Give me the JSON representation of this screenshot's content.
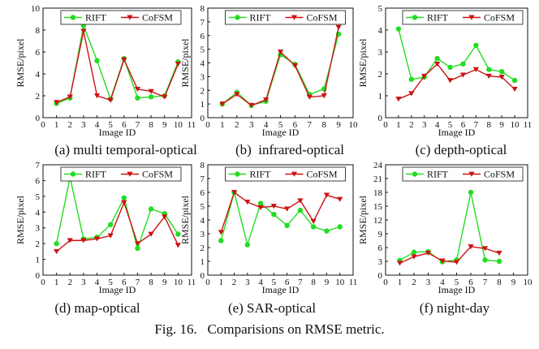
{
  "figure_caption": "Fig. 16.   Comparisions on RMSE metric.",
  "colors": {
    "RIFT": "#22dd22",
    "CoFSM": "#cc1111"
  },
  "chart_data": [
    {
      "type": "line",
      "subcaption": "(a) multi temporal-optical",
      "xlabel": "Image ID",
      "ylabel": "RMSE/pixel",
      "xlim": [
        0,
        11
      ],
      "ylim": [
        0,
        10
      ],
      "xticks": [
        0,
        1,
        2,
        3,
        4,
        5,
        6,
        7,
        8,
        9,
        10,
        11
      ],
      "yticks": [
        0,
        2,
        4,
        6,
        8,
        10
      ],
      "x": [
        1,
        2,
        3,
        4,
        5,
        6,
        7,
        8,
        9,
        10
      ],
      "series": [
        {
          "name": "RIFT",
          "values": [
            1.3,
            1.8,
            8.4,
            5.2,
            1.7,
            5.4,
            1.8,
            1.9,
            2.0,
            5.1
          ]
        },
        {
          "name": "CoFSM",
          "values": [
            1.4,
            1.9,
            7.9,
            2.0,
            1.6,
            5.3,
            2.6,
            2.4,
            1.9,
            4.9
          ]
        }
      ]
    },
    {
      "type": "line",
      "subcaption": "(b)  infrared-optical",
      "xlabel": "Image ID",
      "ylabel": "RMSE/pixel",
      "xlim": [
        0,
        10
      ],
      "ylim": [
        0,
        8
      ],
      "xticks": [
        0,
        1,
        2,
        3,
        4,
        5,
        6,
        7,
        8,
        9,
        10
      ],
      "yticks": [
        0,
        1,
        2,
        3,
        4,
        5,
        6,
        7,
        8
      ],
      "x": [
        1,
        2,
        3,
        4,
        5,
        6,
        7,
        8,
        9
      ],
      "series": [
        {
          "name": "RIFT",
          "values": [
            1.0,
            1.85,
            0.9,
            1.2,
            4.6,
            3.9,
            1.7,
            2.1,
            6.1
          ]
        },
        {
          "name": "CoFSM",
          "values": [
            1.0,
            1.7,
            0.9,
            1.3,
            4.8,
            3.8,
            1.5,
            1.6,
            6.6
          ]
        }
      ]
    },
    {
      "type": "line",
      "subcaption": "(c) depth-optical",
      "xlabel": "Image ID",
      "ylabel": "RMSE/pixel",
      "xlim": [
        0,
        11
      ],
      "ylim": [
        0,
        5
      ],
      "xticks": [
        0,
        1,
        2,
        3,
        4,
        5,
        6,
        7,
        8,
        9,
        10,
        11
      ],
      "yticks": [
        0,
        1,
        2,
        3,
        4,
        5
      ],
      "x": [
        1,
        2,
        3,
        4,
        5,
        6,
        7,
        8,
        9,
        10
      ],
      "series": [
        {
          "name": "RIFT",
          "values": [
            4.05,
            1.75,
            1.85,
            2.7,
            2.3,
            2.45,
            3.3,
            2.2,
            2.1,
            1.7
          ]
        },
        {
          "name": "CoFSM",
          "values": [
            0.85,
            1.1,
            1.9,
            2.45,
            1.7,
            1.95,
            2.2,
            1.9,
            1.85,
            1.3
          ]
        }
      ]
    },
    {
      "type": "line",
      "subcaption": "(d) map-optical",
      "xlabel": "Image ID",
      "ylabel": "RMSE/pixel",
      "xlim": [
        0,
        11
      ],
      "ylim": [
        0,
        7
      ],
      "xticks": [
        0,
        1,
        2,
        3,
        4,
        5,
        6,
        7,
        8,
        9,
        10,
        11
      ],
      "yticks": [
        0,
        1,
        2,
        3,
        4,
        5,
        6,
        7
      ],
      "x": [
        1,
        2,
        3,
        4,
        5,
        6,
        7,
        8,
        9,
        10
      ],
      "series": [
        {
          "name": "RIFT",
          "values": [
            2.0,
            6.2,
            2.3,
            2.4,
            3.2,
            4.9,
            1.7,
            4.2,
            3.9,
            2.6
          ]
        },
        {
          "name": "CoFSM",
          "values": [
            1.5,
            2.2,
            2.2,
            2.3,
            2.5,
            4.6,
            2.0,
            2.6,
            3.7,
            1.9
          ]
        }
      ]
    },
    {
      "type": "line",
      "subcaption": "(e) SAR-optical",
      "xlabel": "Image ID",
      "ylabel": "RMSE/pixel",
      "xlim": [
        0,
        11
      ],
      "ylim": [
        0,
        8
      ],
      "xticks": [
        0,
        1,
        2,
        3,
        4,
        5,
        6,
        7,
        8,
        9,
        10,
        11
      ],
      "yticks": [
        0,
        1,
        2,
        3,
        4,
        5,
        6,
        7,
        8
      ],
      "x": [
        1,
        2,
        3,
        4,
        5,
        6,
        7,
        8,
        9,
        10
      ],
      "series": [
        {
          "name": "RIFT",
          "values": [
            2.5,
            6.0,
            2.2,
            5.2,
            4.4,
            3.6,
            4.7,
            3.5,
            3.2,
            3.5
          ]
        },
        {
          "name": "CoFSM",
          "values": [
            3.1,
            6.0,
            5.3,
            4.9,
            5.0,
            4.8,
            5.4,
            3.9,
            5.8,
            5.5
          ]
        }
      ]
    },
    {
      "type": "line",
      "subcaption": "(f) night-day",
      "xlabel": "Image ID",
      "ylabel": "RMSE/pixel",
      "xlim": [
        0,
        10
      ],
      "ylim": [
        0,
        24
      ],
      "xticks": [
        0,
        1,
        2,
        3,
        4,
        5,
        6,
        7,
        8,
        9,
        10
      ],
      "yticks": [
        0,
        3,
        6,
        9,
        12,
        15,
        18,
        21,
        24
      ],
      "x": [
        1,
        2,
        3,
        4,
        5,
        6,
        7,
        8
      ],
      "series": [
        {
          "name": "RIFT",
          "values": [
            3.2,
            5.0,
            5.1,
            2.9,
            3.3,
            18.0,
            3.3,
            3.0
          ]
        },
        {
          "name": "CoFSM",
          "values": [
            2.6,
            4.0,
            4.8,
            3.1,
            2.8,
            6.2,
            5.8,
            4.8
          ]
        }
      ]
    }
  ]
}
